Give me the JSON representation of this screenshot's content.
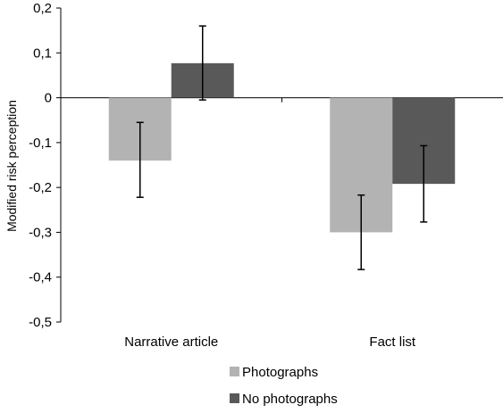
{
  "chart_data": {
    "type": "bar",
    "title": "",
    "xlabel": "",
    "ylabel": "Modified risk perception",
    "ylim": [
      -0.5,
      0.2
    ],
    "yticks": [
      0.2,
      0.1,
      0,
      -0.1,
      -0.2,
      -0.3,
      -0.4,
      -0.5
    ],
    "ytick_labels": [
      "0,2",
      "0,1",
      "0",
      "-0,1",
      "-0,2",
      "-0,3",
      "-0,4",
      "-0,5"
    ],
    "categories": [
      "Narrative article",
      "Fact list"
    ],
    "series": [
      {
        "name": "Photographs",
        "color": "#b3b3b3",
        "values": [
          -0.14,
          -0.3
        ],
        "error_low": [
          -0.222,
          -0.383
        ],
        "error_high": [
          -0.055,
          -0.217
        ]
      },
      {
        "name": "No photographs",
        "color": "#595959",
        "values": [
          0.077,
          -0.192
        ],
        "error_low": [
          -0.005,
          -0.277
        ],
        "error_high": [
          0.16,
          -0.107
        ]
      }
    ],
    "grid": false,
    "legend_position": "bottom"
  }
}
